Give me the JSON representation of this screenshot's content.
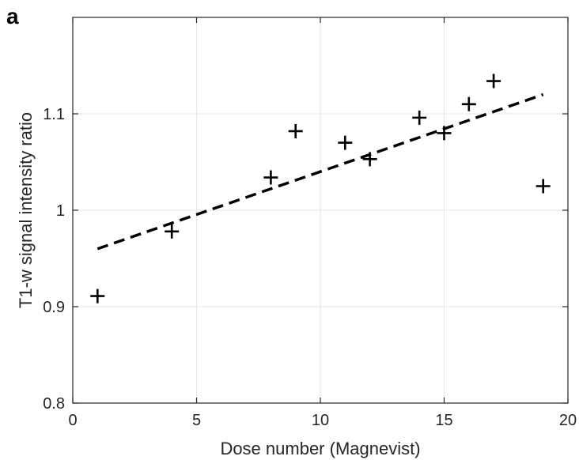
{
  "panel_label": "a",
  "chart_data": {
    "type": "scatter",
    "xlabel": "Dose number (Magnevist)",
    "ylabel": "T1-w signal intensity ratio",
    "xlim": [
      0,
      20
    ],
    "ylim": [
      0.8,
      1.2
    ],
    "x_ticks": [
      0,
      5,
      10,
      15,
      20
    ],
    "x_tick_labels": [
      "0",
      "5",
      "10",
      "15",
      "20"
    ],
    "y_ticks": [
      0.8,
      0.9,
      1.0,
      1.1
    ],
    "y_tick_labels": [
      "0.8",
      "0.9",
      "1",
      "1.1"
    ],
    "grid": true,
    "marker": "plus",
    "series": [
      {
        "type": "scatter",
        "points": [
          {
            "x": 1,
            "y": 0.911
          },
          {
            "x": 4,
            "y": 0.978
          },
          {
            "x": 8,
            "y": 1.034
          },
          {
            "x": 9,
            "y": 1.082
          },
          {
            "x": 11,
            "y": 1.07
          },
          {
            "x": 12,
            "y": 1.053
          },
          {
            "x": 14,
            "y": 1.096
          },
          {
            "x": 15,
            "y": 1.08
          },
          {
            "x": 16,
            "y": 1.11
          },
          {
            "x": 17,
            "y": 1.134
          },
          {
            "x": 19,
            "y": 1.025
          }
        ]
      },
      {
        "type": "line",
        "style": "dashed",
        "points": [
          {
            "x": 1,
            "y": 0.96
          },
          {
            "x": 19,
            "y": 1.12
          }
        ]
      }
    ],
    "colors": {
      "marker": "#000000",
      "fit_line": "#000000",
      "grid": "#e6e6e6",
      "axes": "#262626"
    }
  }
}
